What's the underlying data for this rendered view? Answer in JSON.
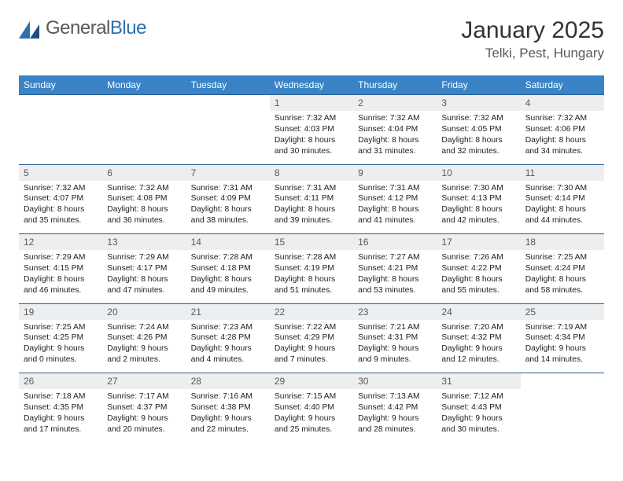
{
  "brand": {
    "part1": "General",
    "part2": "Blue"
  },
  "title": "January 2025",
  "location": "Telki, Pest, Hungary",
  "colors": {
    "header_bg": "#3983c6",
    "header_text": "#ffffff",
    "daynum_bg": "#eceef0",
    "daynum_text": "#595959",
    "cell_border": "#2a5d92",
    "body_text": "#212121"
  },
  "day_headers": [
    "Sunday",
    "Monday",
    "Tuesday",
    "Wednesday",
    "Thursday",
    "Friday",
    "Saturday"
  ],
  "weeks": [
    {
      "nums": [
        "",
        "",
        "",
        "1",
        "2",
        "3",
        "4"
      ],
      "details": [
        "",
        "",
        "",
        "Sunrise: 7:32 AM\nSunset: 4:03 PM\nDaylight: 8 hours and 30 minutes.",
        "Sunrise: 7:32 AM\nSunset: 4:04 PM\nDaylight: 8 hours and 31 minutes.",
        "Sunrise: 7:32 AM\nSunset: 4:05 PM\nDaylight: 8 hours and 32 minutes.",
        "Sunrise: 7:32 AM\nSunset: 4:06 PM\nDaylight: 8 hours and 34 minutes."
      ]
    },
    {
      "nums": [
        "5",
        "6",
        "7",
        "8",
        "9",
        "10",
        "11"
      ],
      "details": [
        "Sunrise: 7:32 AM\nSunset: 4:07 PM\nDaylight: 8 hours and 35 minutes.",
        "Sunrise: 7:32 AM\nSunset: 4:08 PM\nDaylight: 8 hours and 36 minutes.",
        "Sunrise: 7:31 AM\nSunset: 4:09 PM\nDaylight: 8 hours and 38 minutes.",
        "Sunrise: 7:31 AM\nSunset: 4:11 PM\nDaylight: 8 hours and 39 minutes.",
        "Sunrise: 7:31 AM\nSunset: 4:12 PM\nDaylight: 8 hours and 41 minutes.",
        "Sunrise: 7:30 AM\nSunset: 4:13 PM\nDaylight: 8 hours and 42 minutes.",
        "Sunrise: 7:30 AM\nSunset: 4:14 PM\nDaylight: 8 hours and 44 minutes."
      ]
    },
    {
      "nums": [
        "12",
        "13",
        "14",
        "15",
        "16",
        "17",
        "18"
      ],
      "details": [
        "Sunrise: 7:29 AM\nSunset: 4:15 PM\nDaylight: 8 hours and 46 minutes.",
        "Sunrise: 7:29 AM\nSunset: 4:17 PM\nDaylight: 8 hours and 47 minutes.",
        "Sunrise: 7:28 AM\nSunset: 4:18 PM\nDaylight: 8 hours and 49 minutes.",
        "Sunrise: 7:28 AM\nSunset: 4:19 PM\nDaylight: 8 hours and 51 minutes.",
        "Sunrise: 7:27 AM\nSunset: 4:21 PM\nDaylight: 8 hours and 53 minutes.",
        "Sunrise: 7:26 AM\nSunset: 4:22 PM\nDaylight: 8 hours and 55 minutes.",
        "Sunrise: 7:25 AM\nSunset: 4:24 PM\nDaylight: 8 hours and 58 minutes."
      ]
    },
    {
      "nums": [
        "19",
        "20",
        "21",
        "22",
        "23",
        "24",
        "25"
      ],
      "details": [
        "Sunrise: 7:25 AM\nSunset: 4:25 PM\nDaylight: 9 hours and 0 minutes.",
        "Sunrise: 7:24 AM\nSunset: 4:26 PM\nDaylight: 9 hours and 2 minutes.",
        "Sunrise: 7:23 AM\nSunset: 4:28 PM\nDaylight: 9 hours and 4 minutes.",
        "Sunrise: 7:22 AM\nSunset: 4:29 PM\nDaylight: 9 hours and 7 minutes.",
        "Sunrise: 7:21 AM\nSunset: 4:31 PM\nDaylight: 9 hours and 9 minutes.",
        "Sunrise: 7:20 AM\nSunset: 4:32 PM\nDaylight: 9 hours and 12 minutes.",
        "Sunrise: 7:19 AM\nSunset: 4:34 PM\nDaylight: 9 hours and 14 minutes."
      ]
    },
    {
      "nums": [
        "26",
        "27",
        "28",
        "29",
        "30",
        "31",
        ""
      ],
      "details": [
        "Sunrise: 7:18 AM\nSunset: 4:35 PM\nDaylight: 9 hours and 17 minutes.",
        "Sunrise: 7:17 AM\nSunset: 4:37 PM\nDaylight: 9 hours and 20 minutes.",
        "Sunrise: 7:16 AM\nSunset: 4:38 PM\nDaylight: 9 hours and 22 minutes.",
        "Sunrise: 7:15 AM\nSunset: 4:40 PM\nDaylight: 9 hours and 25 minutes.",
        "Sunrise: 7:13 AM\nSunset: 4:42 PM\nDaylight: 9 hours and 28 minutes.",
        "Sunrise: 7:12 AM\nSunset: 4:43 PM\nDaylight: 9 hours and 30 minutes.",
        ""
      ]
    }
  ]
}
